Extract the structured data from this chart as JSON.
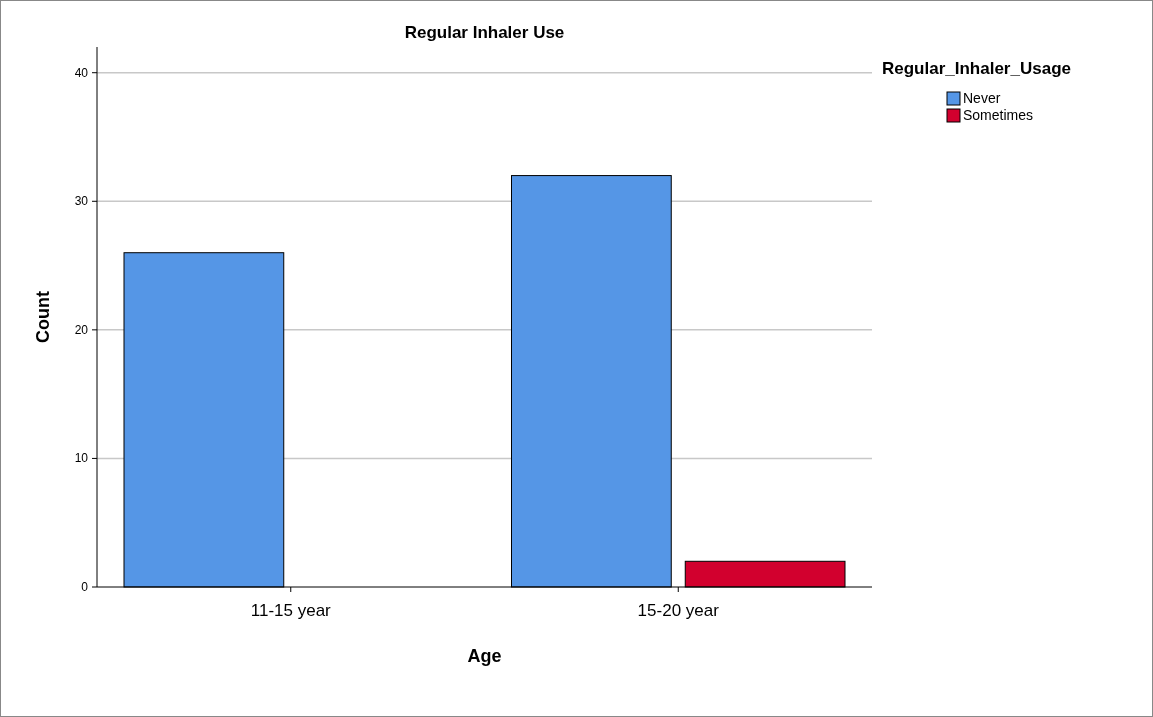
{
  "chart_data": {
    "type": "bar",
    "title": "Regular Inhaler Use",
    "xlabel": "Age",
    "ylabel": "Count",
    "legend_title": "Regular_Inhaler_Usage",
    "categories": [
      "11-15 year",
      "15-20 year"
    ],
    "series": [
      {
        "name": "Never",
        "color": "#5596e6",
        "values": [
          26,
          32
        ]
      },
      {
        "name": "Sometimes",
        "color": "#d2002e",
        "values": [
          0,
          2
        ]
      }
    ],
    "ylim": [
      0,
      42
    ],
    "yticks": [
      0,
      10,
      20,
      30,
      40
    ],
    "grid": "y",
    "legend": "top right"
  }
}
